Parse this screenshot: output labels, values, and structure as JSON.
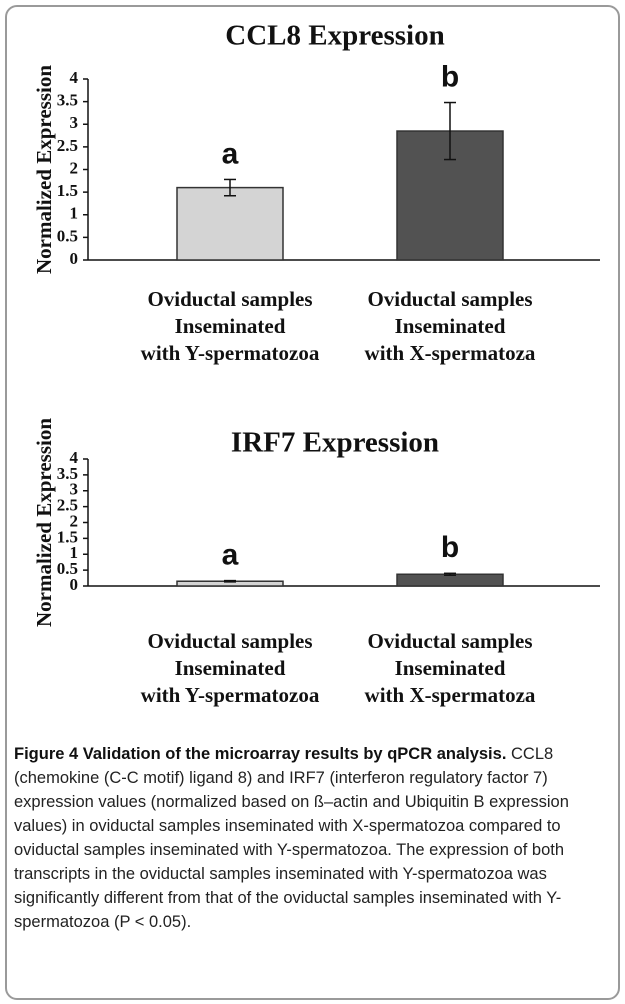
{
  "chart_data": [
    {
      "type": "bar",
      "title": "CCL8 Expression",
      "y_label": "Normalized Expression",
      "categories": [
        "Oviductal samples\nInseminated\nwith Y-spermatozoa",
        "Oviductal samples\nInseminated\nwith X-spermatoza"
      ],
      "values": [
        1.6,
        2.85
      ],
      "errors": [
        0.18,
        0.63
      ],
      "annotations": [
        "a",
        "b"
      ],
      "colors": [
        "#d4d4d4",
        "#525252"
      ],
      "ylim": [
        0,
        4
      ],
      "yticks": [
        0,
        0.5,
        1,
        1.5,
        2,
        2.5,
        3,
        3.5,
        4
      ]
    },
    {
      "type": "bar",
      "title": "IRF7 Expression",
      "y_label": "Normalized Expression",
      "categories": [
        "Oviductal samples\nInseminated\nwith Y-spermatozoa",
        "Oviductal samples\nInseminated\nwith X-spermatoza"
      ],
      "values": [
        0.15,
        0.37
      ],
      "errors": [
        0.02,
        0.03
      ],
      "annotations": [
        "a",
        "b"
      ],
      "colors": [
        "#d4d4d4",
        "#525252"
      ],
      "ylim": [
        0,
        4
      ],
      "yticks": [
        0,
        0.5,
        1,
        1.5,
        2,
        2.5,
        3,
        3.5,
        4
      ]
    }
  ],
  "caption": {
    "title": "Figure 4 Validation of the microarray results by qPCR analysis.",
    "text": "CCL8 (chemokine (C-C motif) ligand 8) and IRF7 (interferon regulatory factor 7) expression values (normalized based on ß–actin and Ubiquitin B expression values) in oviductal samples inseminated with X-spermatozoa compared to oviductal samples inseminated with Y-spermatozoa. The expression of both transcripts in the oviductal samples inseminated with Y-spermatozoa was significantly different from that of the oviductal samples inseminated with Y-spermatozoa (P < 0.05)."
  }
}
